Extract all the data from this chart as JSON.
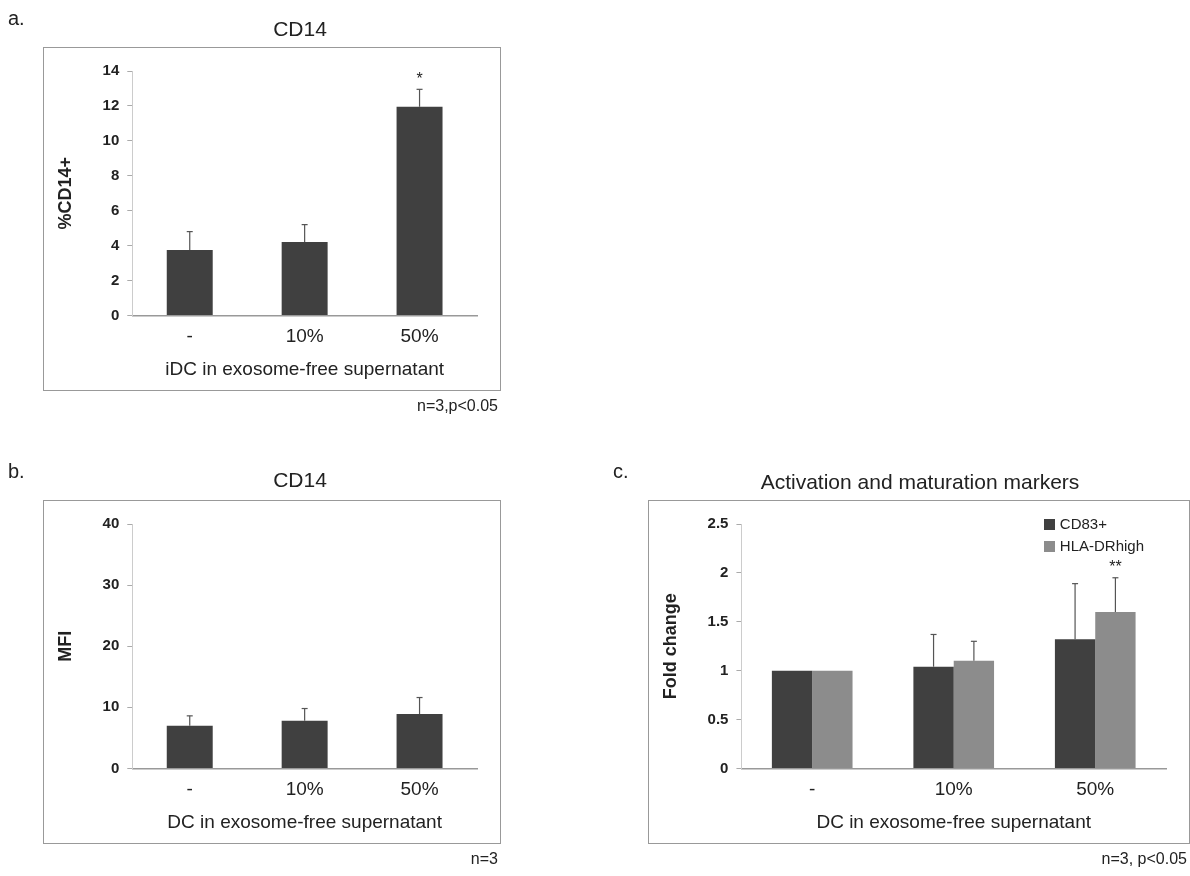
{
  "chart_data": [
    {
      "type": "bar",
      "title": "CD14",
      "xlabel": "iDC in exosome-free supernatant",
      "ylabel": "%CD14+",
      "categories": [
        "-",
        "10%",
        "50%"
      ],
      "values": [
        3.75,
        4.2,
        11.95
      ],
      "color": "#404040",
      "errors": [
        [
          3.75,
          4.8
        ],
        [
          4.2,
          5.2
        ],
        [
          11.95,
          12.95
        ]
      ],
      "ylim": [
        0,
        14
      ],
      "yticks": [
        0,
        2,
        4,
        6,
        8,
        10,
        12,
        14
      ],
      "grid": false,
      "annotations": [
        "a.",
        "*",
        "n=3,p<0.05"
      ]
    },
    {
      "type": "bar",
      "title": "CD14",
      "xlabel": "DC in exosome-free supernatant",
      "ylabel": "MFI",
      "categories": [
        "-",
        "10%",
        "50%"
      ],
      "values": [
        7,
        7.8,
        8.9
      ],
      "color": "#404040",
      "errors": [
        [
          7,
          8.6
        ],
        [
          7.8,
          9.8
        ],
        [
          8.9,
          11.6
        ]
      ],
      "ylim": [
        0,
        40
      ],
      "yticks": [
        0,
        10,
        20,
        30,
        40
      ],
      "grid": false,
      "annotations": [
        "b.",
        "n=3"
      ]
    },
    {
      "type": "bar",
      "title": "Activation and maturation markers",
      "xlabel": "DC in exosome-free supernatant",
      "ylabel": "Fold change",
      "categories": [
        "-",
        "10%",
        "50%"
      ],
      "series": [
        {
          "name": "CD83+",
          "color": "#404040",
          "values": [
            1,
            1.04,
            1.32
          ],
          "errors": [
            null,
            [
              1.04,
              1.37
            ],
            [
              1.32,
              1.89
            ]
          ]
        },
        {
          "name": "HLA-DRhigh",
          "color": "#8c8c8c",
          "values": [
            1,
            1.1,
            1.6
          ],
          "errors": [
            null,
            [
              1.1,
              1.3
            ],
            [
              1.6,
              1.95
            ]
          ]
        }
      ],
      "ylim": [
        0,
        2.5
      ],
      "yticks": [
        0,
        0.5,
        1,
        1.5,
        2,
        2.5
      ],
      "grid": false,
      "legend": "top right",
      "annotations": [
        "c.",
        "**",
        "n=3, p<0.05"
      ]
    }
  ]
}
